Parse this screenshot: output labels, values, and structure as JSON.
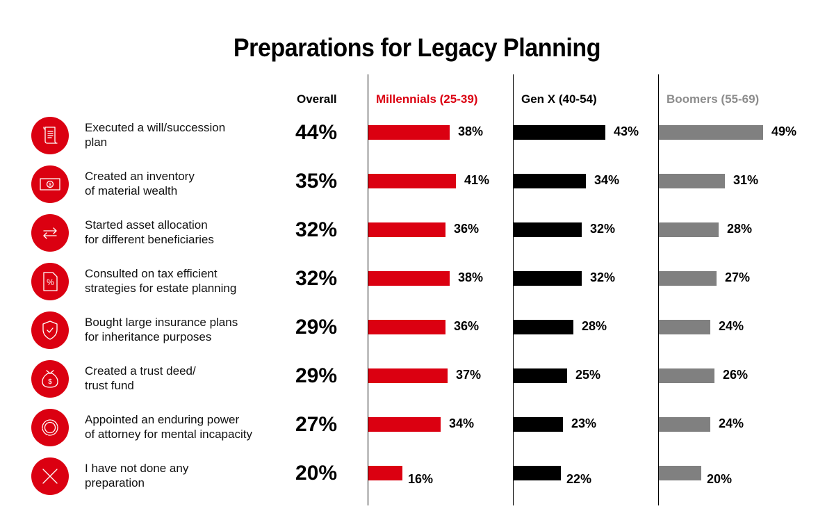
{
  "colors": {
    "millennials": "#DB0011",
    "genx": "#000000",
    "boomers": "#808080",
    "boomers_header": "#8c8c8c",
    "icon_bg": "#DB0011"
  },
  "chart_data": {
    "type": "bar",
    "title": "Preparations for Legacy Planning",
    "orientation": "horizontal",
    "xlim": [
      0,
      100
    ],
    "grid": false,
    "overall_label": "Overall",
    "categories": [
      "Executed a will/succession plan",
      "Created an inventory of material wealth",
      "Started asset allocation for different beneficiaries",
      "Consulted on tax efficient strategies for estate planning",
      "Bought large insurance plans for inheritance purposes",
      "Created a trust deed/ trust fund",
      "Appointed an enduring power of attorney for mental incapacity",
      "I have not done any preparation"
    ],
    "category_lines": [
      [
        "Executed a will/succession",
        "plan"
      ],
      [
        "Created an inventory",
        "of material wealth"
      ],
      [
        "Started asset allocation",
        "for different beneficiaries"
      ],
      [
        "Consulted on tax efficient",
        "strategies for estate planning"
      ],
      [
        "Bought large insurance plans",
        "for inheritance purposes"
      ],
      [
        "Created a trust deed/",
        "trust fund"
      ],
      [
        "Appointed an enduring power",
        "of attorney for mental incapacity"
      ],
      [
        "I have not done any",
        "preparation"
      ]
    ],
    "icons": [
      "scroll-document-icon",
      "banknote-dollar-icon",
      "exchange-arrows-icon",
      "percent-document-icon",
      "shield-check-icon",
      "money-bag-icon",
      "seal-badge-icon",
      "cross-icon"
    ],
    "overall": [
      44,
      35,
      32,
      32,
      29,
      29,
      27,
      20
    ],
    "series": [
      {
        "name": "Millennials (25-39)",
        "key": "millennials",
        "values": [
          38,
          41,
          36,
          38,
          36,
          37,
          34,
          16
        ]
      },
      {
        "name": "Gen X (40-54)",
        "key": "genx",
        "values": [
          43,
          34,
          32,
          32,
          28,
          25,
          23,
          22
        ]
      },
      {
        "name": "Boomers (55-69)",
        "key": "boomers",
        "values": [
          49,
          31,
          28,
          27,
          24,
          26,
          24,
          20
        ]
      }
    ],
    "unit": "%"
  }
}
